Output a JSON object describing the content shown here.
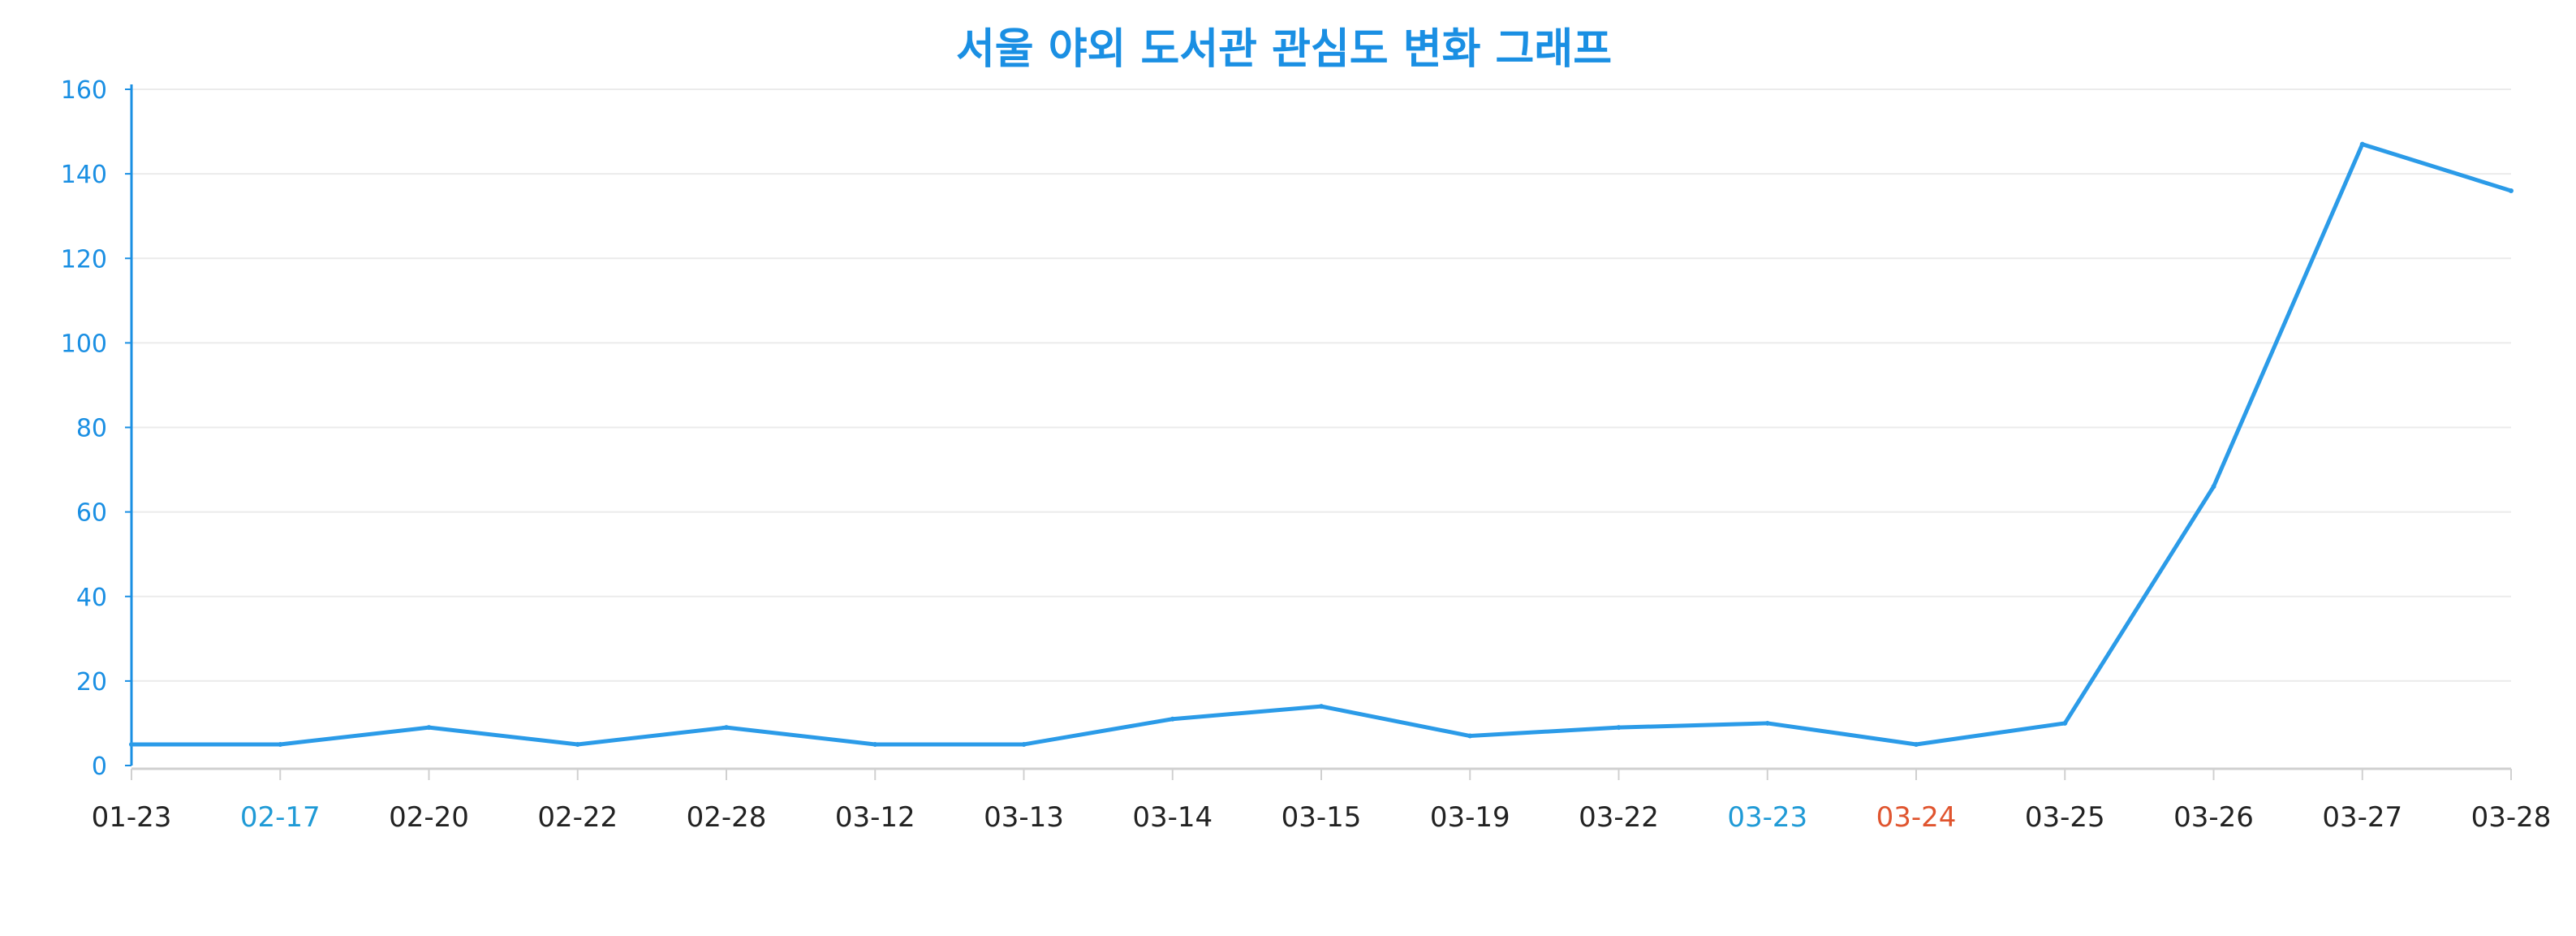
{
  "chart_data": {
    "type": "line",
    "title": "서울 야외 도서관 관심도 변화 그래프",
    "xlabel": "",
    "ylabel": "",
    "categories": [
      "01-23",
      "02-17",
      "02-20",
      "02-22",
      "02-28",
      "03-12",
      "03-13",
      "03-14",
      "03-15",
      "03-19",
      "03-22",
      "03-23",
      "03-24",
      "03-25",
      "03-26",
      "03-27",
      "03-28"
    ],
    "series": [
      {
        "values": [
          5,
          5,
          9,
          5,
          9,
          5,
          5,
          11,
          14,
          7,
          9,
          10,
          5,
          10,
          66,
          147,
          136
        ]
      }
    ],
    "ylim": [
      0,
      160
    ],
    "yticks": [
      0,
      20,
      40,
      60,
      80,
      100,
      120,
      140,
      160
    ],
    "grid": true,
    "legend": "none",
    "colors": {
      "title": "#1a8fe3",
      "line": "#2b9be8",
      "y_axis": "#1a8fe3",
      "y_tick_label": "#1a8fe3",
      "x_axis": "#d0d0d0",
      "x_tick_label_default": "#222222",
      "x_tick_label_blue": "#1f9ad6",
      "x_tick_label_red": "#e0552f",
      "grid": "#ebebeb"
    },
    "x_tick_label_colors": {
      "02-17": "blue",
      "03-23": "blue",
      "03-24": "red"
    }
  }
}
